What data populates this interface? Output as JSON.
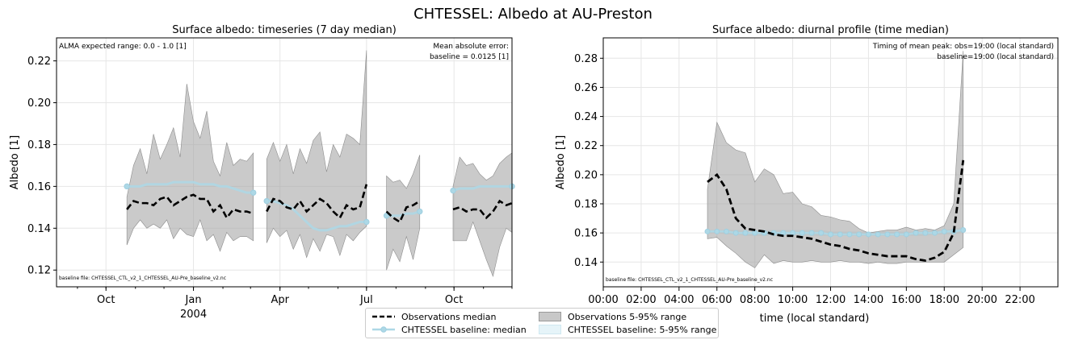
{
  "suptitle": "CHTESSEL: Albedo at AU-Preston",
  "colors": {
    "obs_median": "#000000",
    "obs_band": "#a6a6a6",
    "baseline_median": "#add8e6",
    "baseline_band": "#e0f3f8",
    "grid": "#e6e6e6"
  },
  "legend": {
    "items": [
      {
        "label": "Observations median",
        "kind": "dashed-line"
      },
      {
        "label": "CHTESSEL baseline: median",
        "kind": "line-marker"
      },
      {
        "label": "Observations 5-95% range",
        "kind": "patch-grey"
      },
      {
        "label": "CHTESSEL baseline: 5-95% range",
        "kind": "patch-blue"
      }
    ]
  },
  "chart_data": [
    {
      "type": "area",
      "title": "Surface albedo: timeseries (7 day median)",
      "xlabel": "",
      "ylabel": "Albedo [1]",
      "ylim": [
        0.112,
        0.231
      ],
      "xlim": [
        "2003-08-10",
        "2004-12-01"
      ],
      "grid": true,
      "yticks": [
        "0.12",
        "0.14",
        "0.16",
        "0.18",
        "0.20",
        "0.22"
      ],
      "xticks": [
        {
          "date": "2003-10-01",
          "label": "Oct",
          "sub": ""
        },
        {
          "date": "2004-01-01",
          "label": "Jan",
          "sub": "2004"
        },
        {
          "date": "2004-04-01",
          "label": "Apr",
          "sub": ""
        },
        {
          "date": "2004-07-01",
          "label": "Jul",
          "sub": ""
        },
        {
          "date": "2004-10-01",
          "label": "Oct",
          "sub": ""
        }
      ],
      "annotations": {
        "top_left": "ALMA expected range: 0.0 - 1.0 [1]",
        "top_right_1": "Mean absolute error:",
        "top_right_2": "baseline = 0.0125 [1]",
        "bottom_left": "baseline file: CHTESSEL_CTL_v2_1_CHTESSEL_AU-Pre_baseline_v2.nc"
      },
      "segments": [
        {
          "x": [
            "2003-10-23",
            "2003-10-30",
            "2003-11-06",
            "2003-11-13",
            "2003-11-20",
            "2003-11-27",
            "2003-12-04",
            "2003-12-11",
            "2003-12-18",
            "2003-12-25",
            "2004-01-01",
            "2004-01-08",
            "2004-01-15",
            "2004-01-22",
            "2004-01-29",
            "2004-02-05",
            "2004-02-12",
            "2004-02-19",
            "2004-02-26",
            "2004-03-04"
          ],
          "obs_median": [
            0.149,
            0.153,
            0.152,
            0.152,
            0.151,
            0.154,
            0.155,
            0.151,
            0.153,
            0.155,
            0.156,
            0.154,
            0.154,
            0.148,
            0.151,
            0.145,
            0.149,
            0.148,
            0.148,
            0.147
          ],
          "obs_lo": [
            0.132,
            0.14,
            0.144,
            0.14,
            0.142,
            0.14,
            0.144,
            0.135,
            0.14,
            0.137,
            0.136,
            0.144,
            0.134,
            0.137,
            0.129,
            0.138,
            0.134,
            0.136,
            0.136,
            0.134
          ],
          "obs_hi": [
            0.155,
            0.17,
            0.178,
            0.166,
            0.185,
            0.173,
            0.18,
            0.188,
            0.174,
            0.209,
            0.191,
            0.183,
            0.196,
            0.172,
            0.165,
            0.181,
            0.17,
            0.173,
            0.172,
            0.176
          ],
          "baseline": [
            0.16,
            0.16,
            0.16,
            0.161,
            0.161,
            0.161,
            0.161,
            0.162,
            0.162,
            0.162,
            0.162,
            0.161,
            0.161,
            0.161,
            0.16,
            0.16,
            0.159,
            0.158,
            0.157,
            0.157
          ]
        },
        {
          "x": [
            "2004-03-18",
            "2004-03-25",
            "2004-04-01",
            "2004-04-08",
            "2004-04-15",
            "2004-04-22",
            "2004-04-29",
            "2004-05-06",
            "2004-05-13",
            "2004-05-20",
            "2004-05-27",
            "2004-06-03",
            "2004-06-10",
            "2004-06-17",
            "2004-06-24",
            "2004-07-01"
          ],
          "obs_median": [
            0.148,
            0.154,
            0.153,
            0.15,
            0.149,
            0.153,
            0.148,
            0.151,
            0.154,
            0.152,
            0.148,
            0.145,
            0.151,
            0.149,
            0.15,
            0.161
          ],
          "obs_lo": [
            0.133,
            0.14,
            0.136,
            0.139,
            0.13,
            0.137,
            0.126,
            0.135,
            0.129,
            0.137,
            0.136,
            0.127,
            0.137,
            0.134,
            0.138,
            0.141
          ],
          "obs_hi": [
            0.173,
            0.181,
            0.172,
            0.18,
            0.166,
            0.178,
            0.171,
            0.182,
            0.186,
            0.167,
            0.18,
            0.174,
            0.185,
            0.183,
            0.18,
            0.225
          ],
          "baseline": [
            0.153,
            0.153,
            0.152,
            0.151,
            0.149,
            0.146,
            0.143,
            0.14,
            0.139,
            0.139,
            0.14,
            0.141,
            0.141,
            0.142,
            0.143,
            0.143
          ]
        },
        {
          "x": [
            "2004-07-22",
            "2004-07-29",
            "2004-08-05",
            "2004-08-12",
            "2004-08-19",
            "2004-08-26"
          ],
          "obs_median": [
            0.148,
            0.145,
            0.143,
            0.15,
            0.151,
            0.153
          ],
          "obs_lo": [
            0.12,
            0.13,
            0.124,
            0.136,
            0.125,
            0.14
          ],
          "obs_hi": [
            0.165,
            0.162,
            0.163,
            0.159,
            0.166,
            0.175
          ],
          "baseline": [
            0.146,
            0.146,
            0.146,
            0.147,
            0.147,
            0.148
          ]
        },
        {
          "x": [
            "2004-09-30",
            "2004-10-07",
            "2004-10-14",
            "2004-10-21",
            "2004-10-28",
            "2004-11-04",
            "2004-11-11",
            "2004-11-18",
            "2004-11-25",
            "2004-12-01"
          ],
          "obs_median": [
            0.149,
            0.15,
            0.148,
            0.149,
            0.149,
            0.145,
            0.148,
            0.153,
            0.151,
            0.152
          ],
          "obs_lo": [
            0.134,
            0.134,
            0.134,
            0.143,
            0.134,
            0.125,
            0.117,
            0.131,
            0.14,
            0.138
          ],
          "obs_hi": [
            0.16,
            0.174,
            0.17,
            0.171,
            0.166,
            0.163,
            0.165,
            0.171,
            0.174,
            0.176
          ],
          "baseline": [
            0.158,
            0.159,
            0.159,
            0.159,
            0.16,
            0.16,
            0.16,
            0.16,
            0.16,
            0.16
          ]
        }
      ]
    },
    {
      "type": "line",
      "title": "Surface albedo: diurnal profile (time median)",
      "xlabel": "time (local standard)",
      "ylabel": "Albedo [1]",
      "ylim": [
        0.123,
        0.294
      ],
      "xlim": [
        0,
        24
      ],
      "grid": true,
      "yticks": [
        "0.14",
        "0.16",
        "0.18",
        "0.20",
        "0.22",
        "0.24",
        "0.26",
        "0.28"
      ],
      "xticks": [
        "00:00",
        "02:00",
        "04:00",
        "06:00",
        "08:00",
        "10:00",
        "12:00",
        "14:00",
        "16:00",
        "18:00",
        "20:00",
        "22:00"
      ],
      "annotations": {
        "top_right_1": "Timing of mean peak: obs=19:00 (local standard)",
        "top_right_2": "baseline=19:00 (local standard)",
        "bottom_left": "baseline file: CHTESSEL_CTL_v2_1_CHTESSEL_AU-Pre_baseline_v2.nc"
      },
      "x": [
        5.5,
        6,
        6.5,
        7,
        7.5,
        8,
        8.5,
        9,
        9.5,
        10,
        10.5,
        11,
        11.5,
        12,
        12.5,
        13,
        13.5,
        14,
        14.5,
        15,
        15.5,
        16,
        16.5,
        17,
        17.5,
        18,
        18.5,
        19
      ],
      "obs_median": [
        0.195,
        0.2,
        0.19,
        0.17,
        0.163,
        0.162,
        0.161,
        0.159,
        0.158,
        0.158,
        0.157,
        0.156,
        0.154,
        0.152,
        0.151,
        0.149,
        0.148,
        0.146,
        0.145,
        0.144,
        0.144,
        0.144,
        0.142,
        0.141,
        0.143,
        0.147,
        0.16,
        0.21
      ],
      "obs_lo": [
        0.156,
        0.157,
        0.151,
        0.146,
        0.14,
        0.136,
        0.145,
        0.139,
        0.141,
        0.14,
        0.14,
        0.141,
        0.14,
        0.14,
        0.141,
        0.14,
        0.14,
        0.139,
        0.14,
        0.139,
        0.139,
        0.14,
        0.14,
        0.14,
        0.14,
        0.14,
        0.145,
        0.15
      ],
      "obs_hi": [
        0.19,
        0.236,
        0.222,
        0.217,
        0.215,
        0.195,
        0.204,
        0.2,
        0.187,
        0.188,
        0.18,
        0.178,
        0.172,
        0.171,
        0.169,
        0.168,
        0.163,
        0.16,
        0.161,
        0.162,
        0.162,
        0.164,
        0.162,
        0.163,
        0.162,
        0.165,
        0.18,
        0.285
      ],
      "baseline": [
        0.161,
        0.161,
        0.161,
        0.16,
        0.16,
        0.16,
        0.16,
        0.16,
        0.16,
        0.16,
        0.16,
        0.16,
        0.16,
        0.159,
        0.159,
        0.159,
        0.159,
        0.159,
        0.159,
        0.159,
        0.159,
        0.159,
        0.16,
        0.16,
        0.16,
        0.161,
        0.161,
        0.162
      ],
      "baseline_lo": [
        0.16,
        0.16,
        0.159,
        0.159,
        0.158,
        0.158,
        0.158,
        0.158,
        0.158,
        0.158,
        0.158,
        0.158,
        0.158,
        0.158,
        0.158,
        0.158,
        0.158,
        0.158,
        0.158,
        0.158,
        0.158,
        0.158,
        0.158,
        0.158,
        0.159,
        0.159,
        0.159,
        0.16
      ],
      "baseline_hi": [
        0.162,
        0.162,
        0.162,
        0.162,
        0.162,
        0.162,
        0.162,
        0.162,
        0.162,
        0.162,
        0.162,
        0.162,
        0.162,
        0.161,
        0.161,
        0.161,
        0.161,
        0.161,
        0.161,
        0.161,
        0.161,
        0.161,
        0.161,
        0.162,
        0.162,
        0.162,
        0.163,
        0.164
      ]
    }
  ]
}
